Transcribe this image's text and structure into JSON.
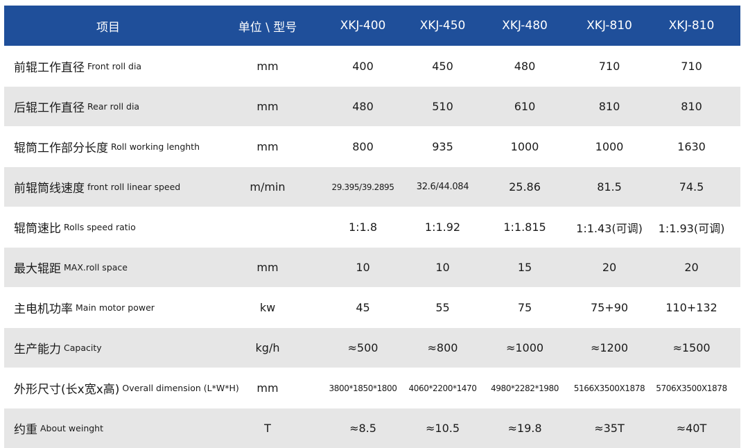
{
  "colors": {
    "header_bg": "#1f4f9a",
    "header_text": "#ffffff",
    "row_alt_bg": "#e6e6e6"
  },
  "header": {
    "item": "项目",
    "unit": "单位 \\ 型号",
    "models": [
      "XKJ-400",
      "XKJ-450",
      "XKJ-480",
      "XKJ-810",
      "XKJ-810"
    ]
  },
  "rows": [
    {
      "zh": "前辊工作直径",
      "en": "Front roll dia",
      "unit": "mm",
      "values": [
        "400",
        "450",
        "480",
        "710",
        "710"
      ]
    },
    {
      "zh": "后辊工作直径",
      "en": "Rear roll dia",
      "unit": "mm",
      "values": [
        "480",
        "510",
        "610",
        "810",
        "810"
      ]
    },
    {
      "zh": "辊筒工作部分长度",
      "en": "Roll working lenghth",
      "unit": "mm",
      "values": [
        "800",
        "935",
        "1000",
        "1000",
        "1630"
      ]
    },
    {
      "zh": "前辊筒线速度",
      "en": "front roll linear speed",
      "unit": "m/min",
      "values": [
        "29.395/39.2895",
        "32.6/44.084",
        "25.86",
        "81.5",
        "74.5"
      ]
    },
    {
      "zh": "辊筒速比",
      "en": "Rolls speed ratio",
      "unit": "",
      "values": [
        "1:1.8",
        "1:1.92",
        "1:1.815",
        "1:1.43(可调)",
        "1:1.93(可调)"
      ]
    },
    {
      "zh": "最大辊距",
      "en": "MAX.roll space",
      "unit": "mm",
      "values": [
        "10",
        "10",
        "15",
        "20",
        "20"
      ]
    },
    {
      "zh": "主电机功率",
      "en": "Main motor power",
      "unit": "kw",
      "values": [
        "45",
        "55",
        "75",
        "75+90",
        "110+132"
      ]
    },
    {
      "zh": "生产能力",
      "en": "Capacity",
      "unit": "kg/h",
      "values": [
        "≈500",
        "≈800",
        "≈1000",
        "≈1200",
        "≈1500"
      ]
    },
    {
      "zh": "外形尺寸(长x宽x高)",
      "en": "Overall dimension (L*W*H)",
      "unit": "mm",
      "values": [
        "3800*1850*1800",
        "4060*2200*1470",
        "4980*2282*1980",
        "5166X3500X1878",
        "5706X3500X1878"
      ]
    },
    {
      "zh": "约重",
      "en": "About weinght",
      "unit": "T",
      "values": [
        "≈8.5",
        "≈10.5",
        "≈19.8",
        "≈35T",
        "≈40T"
      ]
    }
  ]
}
